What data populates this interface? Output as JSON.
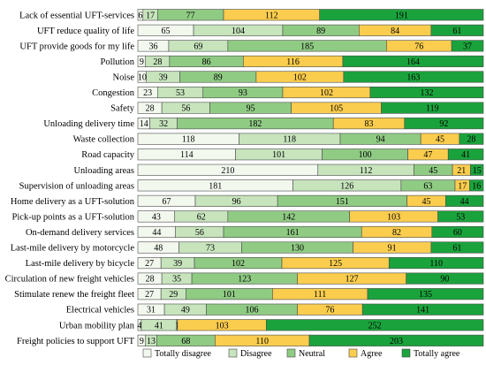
{
  "chart_data": {
    "type": "bar",
    "orientation": "horizontal",
    "stacked": true,
    "title": "",
    "xlabel": "",
    "ylabel": "",
    "grid": false,
    "legend_position": "bottom",
    "categories": [
      "Lack of essential UFT-services",
      "UFT reduce quality of life",
      "UFT provide goods for my life",
      "Pollution",
      "Noise",
      "Congestion",
      "Safety",
      "Unloading delivery time",
      "Waste collection",
      "Road capacity",
      "Unloading areas",
      "Supervision of unloading areas",
      "Home delivery as a UFT-solution",
      "Pick-up points as a UFT-solution",
      "On-demand delivery services",
      "Last-mile delivery by motorcycle",
      "Last-mile delivery by bicycle",
      "Circulation of new freight vehicles",
      "Stimulate renew the freight fleet",
      "Electrical vehicles",
      "Urban mobility plan",
      "Freight policies to support UFT"
    ],
    "series": [
      {
        "name": "Totally disagree",
        "color": "#f2f8ee",
        "values": [
          6,
          65,
          36,
          9,
          10,
          23,
          28,
          14,
          118,
          114,
          210,
          181,
          67,
          43,
          44,
          48,
          27,
          28,
          27,
          31,
          4,
          9
        ]
      },
      {
        "name": "Disagree",
        "color": "#c7e4bd",
        "values": [
          17,
          104,
          69,
          28,
          39,
          53,
          56,
          32,
          118,
          101,
          112,
          126,
          96,
          62,
          56,
          73,
          39,
          35,
          29,
          49,
          41,
          13
        ]
      },
      {
        "name": "Neutral",
        "color": "#90cb84",
        "values": [
          77,
          89,
          185,
          86,
          89,
          93,
          95,
          182,
          94,
          100,
          45,
          63,
          151,
          142,
          161,
          130,
          102,
          123,
          101,
          106,
          1,
          68
        ]
      },
      {
        "name": "Agree",
        "color": "#fbcd4e",
        "values": [
          112,
          84,
          76,
          116,
          102,
          102,
          105,
          83,
          45,
          47,
          21,
          17,
          45,
          103,
          82,
          91,
          125,
          127,
          111,
          76,
          103,
          110
        ]
      },
      {
        "name": "Totally agree",
        "color": "#1aa33c",
        "values": [
          191,
          61,
          37,
          164,
          163,
          132,
          119,
          92,
          28,
          41,
          15,
          16,
          44,
          53,
          60,
          61,
          110,
          90,
          135,
          141,
          252,
          203
        ]
      }
    ]
  }
}
